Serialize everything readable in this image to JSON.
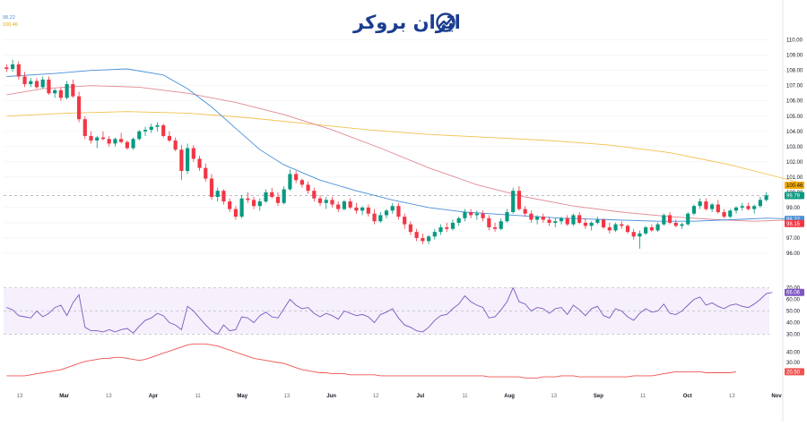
{
  "brand": {
    "logo_text": "ایران بروکر"
  },
  "colors": {
    "up": "#089981",
    "down": "#f23645",
    "ma_fast": "#4a90d9",
    "ma_mid": "#e08a95",
    "ma_slow": "#f2c14e",
    "rsi": "#7e57c2",
    "osc": "#ef5350",
    "grid": "#eef0f3",
    "axis_text": "#131722",
    "logo": "#1a3d8f"
  },
  "legend": {
    "line1_value": "98.22",
    "line2_value": "100.46"
  },
  "chart_data": [
    {
      "type": "candlestick",
      "panel": "price",
      "ylim": [
        95.0,
        111.8
      ],
      "yticks": [
        96.0,
        97.0,
        98.0,
        99.0,
        100.0,
        101.0,
        102.0,
        103.0,
        104.0,
        105.0,
        106.0,
        107.0,
        108.0,
        109.0,
        110.0
      ],
      "ytick_labels": [
        "96.00",
        "97.00",
        "98.00",
        "99.00",
        "100.00",
        "101.00",
        "102.00",
        "103.00",
        "104.00",
        "105.00",
        "106.00",
        "107.00",
        "108.00",
        "109.00",
        "110.00"
      ],
      "x_axis": {
        "labels": [
          "13",
          "Mar",
          "13",
          "Apr",
          "11",
          "May",
          "13",
          "Jun",
          "12",
          "Jul",
          "11",
          "Aug",
          "13",
          "Sep",
          "11",
          "Oct",
          "13",
          "Nov"
        ],
        "month_labels": [
          "Mar",
          "Apr",
          "May",
          "Jun",
          "Jul",
          "Aug",
          "Sep",
          "Oct",
          "Nov"
        ]
      },
      "price_labels": [
        {
          "value": "100.46",
          "y": 100.46,
          "color": "#f2a900",
          "text_color": "#131722"
        },
        {
          "value": "99.79",
          "y": 99.79,
          "color": "#089981",
          "text_color": "#ffffff"
        },
        {
          "value": "98.22",
          "y": 98.22,
          "color": "#4a90d9",
          "text_color": "#ffffff"
        },
        {
          "value": "98.15",
          "y": 97.95,
          "color": "#f23645",
          "text_color": "#ffffff"
        }
      ],
      "ohlc": [
        [
          108.2,
          108.4,
          107.9,
          108.1
        ],
        [
          108.1,
          108.7,
          107.9,
          108.4
        ],
        [
          108.4,
          108.6,
          107.4,
          107.6
        ],
        [
          107.6,
          107.9,
          106.9,
          107.1
        ],
        [
          107.1,
          107.5,
          106.9,
          107.3
        ],
        [
          107.3,
          107.5,
          106.8,
          106.9
        ],
        [
          106.9,
          107.6,
          106.8,
          107.4
        ],
        [
          107.4,
          107.6,
          106.4,
          106.5
        ],
        [
          106.5,
          106.8,
          106.2,
          106.7
        ],
        [
          106.7,
          106.9,
          106.0,
          106.2
        ],
        [
          106.2,
          107.3,
          106.1,
          107.1
        ],
        [
          107.1,
          107.4,
          106.2,
          106.3
        ],
        [
          106.3,
          106.6,
          104.6,
          104.8
        ],
        [
          104.8,
          105.0,
          103.5,
          103.7
        ],
        [
          103.7,
          104.0,
          103.2,
          103.4
        ],
        [
          103.4,
          103.7,
          102.9,
          103.6
        ],
        [
          103.6,
          104.0,
          103.4,
          103.5
        ],
        [
          103.5,
          103.7,
          103.0,
          103.2
        ],
        [
          103.2,
          103.6,
          103.0,
          103.5
        ],
        [
          103.5,
          103.9,
          103.2,
          103.3
        ],
        [
          103.3,
          103.4,
          102.8,
          102.9
        ],
        [
          102.9,
          103.6,
          102.8,
          103.5
        ],
        [
          103.5,
          104.1,
          103.4,
          104.0
        ],
        [
          104.0,
          104.3,
          103.7,
          104.1
        ],
        [
          104.1,
          104.5,
          103.9,
          104.3
        ],
        [
          104.3,
          104.6,
          104.0,
          104.4
        ],
        [
          104.4,
          104.5,
          103.6,
          103.7
        ],
        [
          103.7,
          104.0,
          103.3,
          103.4
        ],
        [
          103.4,
          103.6,
          102.7,
          102.8
        ],
        [
          102.8,
          103.1,
          100.8,
          101.4
        ],
        [
          101.4,
          103.2,
          101.2,
          102.9
        ],
        [
          102.9,
          103.1,
          102.0,
          102.2
        ],
        [
          102.2,
          102.4,
          101.4,
          101.6
        ],
        [
          101.6,
          101.9,
          100.7,
          100.9
        ],
        [
          100.9,
          101.2,
          99.5,
          99.7
        ],
        [
          99.7,
          100.3,
          99.4,
          100.1
        ],
        [
          100.1,
          100.2,
          99.2,
          99.4
        ],
        [
          99.4,
          99.6,
          98.7,
          98.9
        ],
        [
          98.9,
          99.1,
          98.2,
          98.4
        ],
        [
          98.4,
          99.8,
          98.3,
          99.6
        ],
        [
          99.6,
          100.0,
          99.3,
          99.5
        ],
        [
          99.5,
          99.7,
          98.9,
          99.1
        ],
        [
          99.1,
          99.6,
          98.8,
          99.4
        ],
        [
          99.4,
          100.2,
          99.3,
          100.0
        ],
        [
          100.0,
          100.3,
          99.6,
          99.7
        ],
        [
          99.7,
          100.0,
          99.1,
          99.3
        ],
        [
          99.3,
          100.4,
          99.2,
          100.2
        ],
        [
          100.2,
          101.5,
          100.1,
          101.2
        ],
        [
          101.2,
          101.4,
          100.6,
          100.8
        ],
        [
          100.8,
          100.9,
          100.3,
          100.5
        ],
        [
          100.5,
          100.7,
          99.9,
          100.1
        ],
        [
          100.1,
          100.3,
          99.4,
          99.6
        ],
        [
          99.6,
          99.8,
          99.1,
          99.3
        ],
        [
          99.3,
          99.7,
          98.9,
          99.5
        ],
        [
          99.5,
          99.7,
          99.0,
          99.2
        ],
        [
          99.2,
          99.4,
          98.7,
          98.9
        ],
        [
          98.9,
          99.5,
          98.8,
          99.4
        ],
        [
          99.4,
          99.6,
          98.9,
          99.0
        ],
        [
          99.0,
          99.3,
          98.6,
          98.8
        ],
        [
          98.8,
          99.1,
          98.5,
          99.0
        ],
        [
          99.0,
          99.2,
          98.4,
          98.6
        ],
        [
          98.6,
          98.9,
          97.9,
          98.1
        ],
        [
          98.1,
          98.7,
          98.0,
          98.5
        ],
        [
          98.5,
          98.9,
          98.3,
          98.8
        ],
        [
          98.8,
          99.3,
          98.6,
          99.1
        ],
        [
          99.1,
          99.3,
          98.2,
          98.4
        ],
        [
          98.4,
          98.6,
          97.6,
          97.9
        ],
        [
          97.9,
          98.1,
          97.2,
          97.4
        ],
        [
          97.4,
          97.6,
          96.8,
          97.0
        ],
        [
          97.0,
          97.3,
          96.6,
          96.8
        ],
        [
          96.8,
          97.2,
          96.6,
          97.1
        ],
        [
          97.1,
          97.6,
          96.9,
          97.4
        ],
        [
          97.4,
          97.9,
          97.2,
          97.7
        ],
        [
          97.7,
          98.0,
          97.4,
          97.6
        ],
        [
          97.6,
          98.2,
          97.5,
          98.0
        ],
        [
          98.0,
          98.4,
          97.8,
          98.3
        ],
        [
          98.3,
          98.9,
          98.1,
          98.7
        ],
        [
          98.7,
          98.9,
          98.3,
          98.5
        ],
        [
          98.5,
          98.8,
          98.2,
          98.6
        ],
        [
          98.6,
          98.8,
          98.1,
          98.3
        ],
        [
          98.3,
          98.5,
          97.5,
          97.7
        ],
        [
          97.7,
          98.0,
          97.4,
          97.6
        ],
        [
          97.6,
          98.3,
          97.5,
          98.1
        ],
        [
          98.1,
          98.9,
          98.0,
          98.7
        ],
        [
          98.7,
          100.3,
          98.6,
          100.1
        ],
        [
          100.1,
          100.4,
          98.8,
          98.9
        ],
        [
          98.9,
          99.1,
          98.4,
          98.6
        ],
        [
          98.6,
          98.8,
          98.0,
          98.2
        ],
        [
          98.2,
          98.5,
          97.9,
          98.4
        ],
        [
          98.4,
          98.6,
          98.0,
          98.2
        ],
        [
          98.2,
          98.4,
          97.8,
          98.0
        ],
        [
          98.0,
          98.3,
          97.7,
          98.1
        ],
        [
          98.1,
          98.4,
          97.9,
          98.3
        ],
        [
          98.3,
          98.5,
          97.8,
          97.9
        ],
        [
          97.9,
          98.6,
          97.8,
          98.5
        ],
        [
          98.5,
          98.7,
          97.9,
          98.0
        ],
        [
          98.0,
          98.3,
          97.6,
          97.8
        ],
        [
          97.8,
          98.1,
          97.5,
          98.0
        ],
        [
          98.0,
          98.4,
          97.9,
          98.2
        ],
        [
          98.2,
          98.3,
          97.6,
          97.7
        ],
        [
          97.7,
          98.0,
          97.3,
          97.5
        ],
        [
          97.5,
          98.0,
          97.4,
          97.9
        ],
        [
          97.9,
          98.1,
          97.6,
          97.8
        ],
        [
          97.8,
          97.9,
          97.3,
          97.4
        ],
        [
          97.4,
          97.6,
          96.9,
          97.1
        ],
        [
          97.1,
          97.5,
          96.3,
          97.3
        ],
        [
          97.3,
          97.8,
          97.2,
          97.7
        ],
        [
          97.7,
          97.9,
          97.4,
          97.5
        ],
        [
          97.5,
          98.0,
          97.4,
          97.9
        ],
        [
          97.9,
          98.6,
          97.8,
          98.5
        ],
        [
          98.5,
          98.7,
          97.9,
          98.0
        ],
        [
          98.0,
          98.2,
          97.7,
          97.8
        ],
        [
          97.8,
          98.0,
          97.6,
          97.9
        ],
        [
          97.9,
          98.7,
          97.8,
          98.6
        ],
        [
          98.6,
          99.2,
          98.5,
          99.1
        ],
        [
          99.1,
          99.6,
          98.9,
          99.4
        ],
        [
          99.4,
          99.6,
          98.8,
          98.9
        ],
        [
          98.9,
          99.3,
          98.7,
          99.2
        ],
        [
          99.2,
          99.5,
          98.6,
          98.7
        ],
        [
          98.7,
          98.9,
          98.3,
          98.4
        ],
        [
          98.4,
          98.9,
          98.3,
          98.8
        ],
        [
          98.8,
          99.1,
          98.6,
          99.0
        ],
        [
          99.0,
          99.3,
          98.8,
          99.1
        ],
        [
          99.1,
          99.3,
          98.8,
          98.9
        ],
        [
          98.9,
          99.2,
          98.6,
          99.1
        ],
        [
          99.1,
          99.7,
          99.0,
          99.5
        ],
        [
          99.5,
          100.0,
          99.4,
          99.8
        ]
      ],
      "ma_fast": [
        [
          0,
          107.6
        ],
        [
          8,
          107.8
        ],
        [
          14,
          108.0
        ],
        [
          20,
          108.1
        ],
        [
          26,
          107.7
        ],
        [
          30,
          106.8
        ],
        [
          34,
          105.6
        ],
        [
          38,
          104.2
        ],
        [
          42,
          102.8
        ],
        [
          46,
          101.8
        ],
        [
          52,
          100.8
        ],
        [
          58,
          100.1
        ],
        [
          64,
          99.5
        ],
        [
          70,
          99.0
        ],
        [
          76,
          98.7
        ],
        [
          84,
          98.5
        ],
        [
          92,
          98.3
        ],
        [
          100,
          98.2
        ],
        [
          108,
          98.1
        ],
        [
          114,
          98.1
        ],
        [
          120,
          98.2
        ],
        [
          126,
          98.3
        ],
        [
          131,
          98.25
        ]
      ],
      "ma_mid": [
        [
          0,
          106.4
        ],
        [
          6,
          106.8
        ],
        [
          14,
          107.0
        ],
        [
          22,
          106.9
        ],
        [
          30,
          106.5
        ],
        [
          38,
          105.9
        ],
        [
          46,
          105.1
        ],
        [
          54,
          104.1
        ],
        [
          62,
          102.9
        ],
        [
          70,
          101.6
        ],
        [
          78,
          100.5
        ],
        [
          86,
          99.7
        ],
        [
          94,
          99.1
        ],
        [
          102,
          98.7
        ],
        [
          110,
          98.4
        ],
        [
          118,
          98.2
        ],
        [
          124,
          98.1
        ],
        [
          131,
          98.2
        ]
      ],
      "ma_slow": [
        [
          0,
          105.0
        ],
        [
          10,
          105.2
        ],
        [
          20,
          105.3
        ],
        [
          30,
          105.2
        ],
        [
          40,
          104.9
        ],
        [
          50,
          104.5
        ],
        [
          60,
          104.1
        ],
        [
          70,
          103.8
        ],
        [
          80,
          103.6
        ],
        [
          90,
          103.4
        ],
        [
          100,
          103.1
        ],
        [
          110,
          102.6
        ],
        [
          120,
          101.8
        ],
        [
          126,
          101.2
        ],
        [
          131,
          100.7
        ]
      ]
    },
    {
      "type": "line",
      "panel": "rsi",
      "ylim": [
        25,
        75
      ],
      "yticks": [
        30.0,
        40.0,
        50.0,
        60.0,
        70.0
      ],
      "ytick_labels": [
        "30.00",
        "40.00",
        "50.00",
        "60.00",
        "70.00"
      ],
      "bands": [
        30,
        50,
        70
      ],
      "current_label": "66.06",
      "values": [
        53,
        51,
        46,
        45,
        44,
        50,
        45,
        48,
        53,
        55,
        46,
        57,
        64,
        36,
        33,
        33,
        32,
        34,
        32,
        34,
        35,
        31,
        37,
        42,
        44,
        48,
        46,
        40,
        38,
        34,
        54,
        50,
        44,
        38,
        33,
        30,
        38,
        33,
        34,
        45,
        44,
        40,
        46,
        49,
        45,
        44,
        52,
        60,
        55,
        52,
        53,
        48,
        45,
        48,
        46,
        43,
        50,
        48,
        46,
        47,
        45,
        40,
        47,
        49,
        52,
        44,
        38,
        36,
        33,
        32,
        36,
        42,
        46,
        47,
        52,
        56,
        63,
        58,
        55,
        53,
        44,
        45,
        51,
        58,
        70,
        58,
        56,
        50,
        53,
        52,
        48,
        52,
        53,
        47,
        55,
        51,
        46,
        52,
        54,
        46,
        44,
        52,
        50,
        45,
        42,
        48,
        52,
        49,
        50,
        56,
        48,
        47,
        50,
        55,
        60,
        62,
        55,
        57,
        54,
        52,
        55,
        56,
        54,
        53,
        56,
        60,
        65,
        66
      ]
    },
    {
      "type": "line",
      "panel": "oscillator",
      "ylim": [
        10,
        50
      ],
      "yticks": [
        20.0,
        30.0,
        40.0
      ],
      "ytick_labels": [
        "20.00",
        "30.00",
        "40.00"
      ],
      "current_label": "20.50",
      "values": [
        17,
        17,
        17,
        17,
        18,
        19,
        20,
        21,
        22,
        23,
        25,
        27,
        29,
        31,
        32,
        33,
        34,
        34,
        35,
        35,
        34,
        33,
        32,
        33,
        35,
        37,
        39,
        41,
        43,
        45,
        47,
        48,
        48,
        48,
        47,
        46,
        44,
        42,
        40,
        38,
        36,
        34,
        33,
        32,
        31,
        30,
        29,
        27,
        25,
        23,
        22,
        21,
        20,
        20,
        19,
        19,
        19,
        18,
        18,
        18,
        18,
        18,
        17,
        17,
        17,
        17,
        17,
        17,
        17,
        17,
        17,
        17,
        17,
        17,
        17,
        17,
        17,
        17,
        17,
        17,
        16,
        16,
        16,
        16,
        16,
        16,
        15,
        15,
        15,
        16,
        16,
        16,
        17,
        17,
        17,
        16,
        16,
        16,
        16,
        16,
        16,
        16,
        16,
        16,
        17,
        17,
        17,
        17,
        18,
        19,
        20,
        21,
        21,
        21,
        21,
        21,
        20,
        20,
        20,
        20,
        20,
        21
      ]
    }
  ]
}
